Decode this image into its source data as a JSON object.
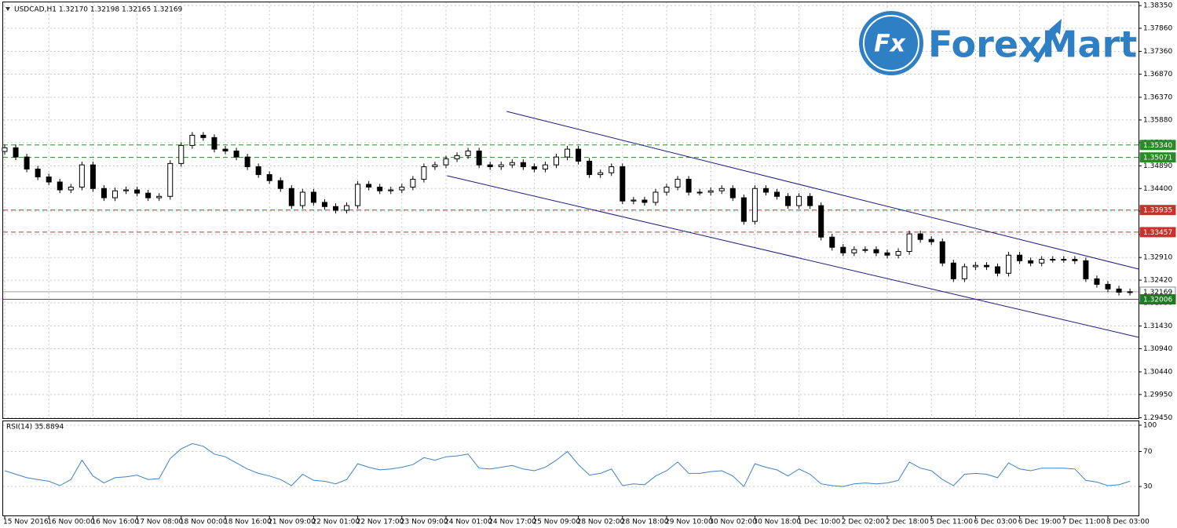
{
  "logo": {
    "icon": "Fx",
    "text": "ForexMart"
  },
  "chart_data": [
    {
      "type": "candlestick",
      "title": "USDCAD,H1  1.32170 1.32198 1.32165 1.32169",
      "categories": [
        "15 Nov 2016",
        null,
        null,
        null,
        "16 Nov 00:00",
        null,
        null,
        null,
        "16 Nov 16:00",
        null,
        null,
        null,
        "17 Nov 08:00",
        null,
        null,
        null,
        "18 Nov 00:00",
        null,
        null,
        null,
        "18 Nov 16:00",
        null,
        null,
        null,
        "21 Nov 09:00",
        null,
        null,
        null,
        "22 Nov 01:00",
        null,
        null,
        null,
        "22 Nov 17:00",
        null,
        null,
        null,
        "23 Nov 09:00",
        null,
        null,
        null,
        "24 Nov 01:00",
        null,
        null,
        null,
        "24 Nov 17:00",
        null,
        null,
        null,
        "25 Nov 09:00",
        null,
        null,
        null,
        "28 Nov 02:00",
        null,
        null,
        null,
        "28 Nov 18:00",
        null,
        null,
        null,
        "29 Nov 10:00",
        null,
        null,
        null,
        "30 Nov 02:00",
        null,
        null,
        null,
        "30 Nov 18:00",
        null,
        null,
        null,
        "1 Dec 10:00",
        null,
        null,
        null,
        "2 Dec 02:00",
        null,
        null,
        null,
        "2 Dec 18:00",
        null,
        null,
        null,
        "5 Dec 11:00",
        null,
        null,
        null,
        "6 Dec 03:00",
        null,
        null,
        null,
        "6 Dec 19:00",
        null,
        null,
        null,
        "7 Dec 11:00",
        null,
        null,
        null,
        "8 Dec 03:00",
        null,
        null
      ],
      "open": [
        1.352,
        1.3528,
        1.3508,
        1.3482,
        1.3465,
        1.3454,
        1.3437,
        1.3443,
        1.3491,
        1.344,
        1.342,
        1.3435,
        1.3437,
        1.343,
        1.342,
        1.3423,
        1.3494,
        1.3533,
        1.3555,
        1.355,
        1.3525,
        1.3521,
        1.3508,
        1.3487,
        1.347,
        1.3457,
        1.344,
        1.3403,
        1.3432,
        1.341,
        1.3401,
        1.3393,
        1.3403,
        1.3449,
        1.3443,
        1.3435,
        1.3437,
        1.3443,
        1.346,
        1.3487,
        1.3491,
        1.3504,
        1.3511,
        1.3521,
        1.3491,
        1.3487,
        1.3491,
        1.3496,
        1.3487,
        1.3482,
        1.3491,
        1.3508,
        1.3525,
        1.3499,
        1.347,
        1.3474,
        1.3487,
        1.3413,
        1.3415,
        1.341,
        1.3432,
        1.3443,
        1.346,
        1.3432,
        1.3432,
        1.3435,
        1.344,
        1.342,
        1.3369,
        1.344,
        1.3432,
        1.3423,
        1.3403,
        1.3423,
        1.3403,
        1.3335,
        1.3313,
        1.3301,
        1.3308,
        1.3308,
        1.3301,
        1.3296,
        1.3304,
        1.3342,
        1.333,
        1.3325,
        1.3279,
        1.3245,
        1.3271,
        1.3274,
        1.3271,
        1.3257,
        1.3296,
        1.3284,
        1.3279,
        1.3287,
        1.3287,
        1.3287,
        1.3284,
        1.3245,
        1.3233,
        1.3223,
        1.3216
      ],
      "high": [
        1.3535,
        1.3535,
        1.3515,
        1.3489,
        1.3472,
        1.3461,
        1.345,
        1.3498,
        1.3498,
        1.3447,
        1.3442,
        1.3444,
        1.3444,
        1.3437,
        1.343,
        1.3501,
        1.354,
        1.3562,
        1.3562,
        1.3557,
        1.3532,
        1.3528,
        1.3515,
        1.3494,
        1.3477,
        1.3464,
        1.3447,
        1.3439,
        1.3439,
        1.3417,
        1.3408,
        1.341,
        1.3456,
        1.3456,
        1.345,
        1.3444,
        1.345,
        1.3467,
        1.3494,
        1.3498,
        1.3511,
        1.3518,
        1.3528,
        1.3528,
        1.3498,
        1.3498,
        1.3503,
        1.3503,
        1.3494,
        1.3498,
        1.3515,
        1.3532,
        1.3532,
        1.3506,
        1.3481,
        1.3494,
        1.3494,
        1.3422,
        1.3422,
        1.3439,
        1.345,
        1.3467,
        1.3467,
        1.3439,
        1.3442,
        1.3447,
        1.3447,
        1.3427,
        1.3447,
        1.3447,
        1.3439,
        1.343,
        1.343,
        1.343,
        1.341,
        1.3342,
        1.332,
        1.3315,
        1.3315,
        1.3315,
        1.3308,
        1.3311,
        1.3349,
        1.3349,
        1.3337,
        1.3332,
        1.3286,
        1.3278,
        1.3281,
        1.3281,
        1.3278,
        1.3303,
        1.3303,
        1.3291,
        1.3294,
        1.3294,
        1.3294,
        1.3294,
        1.3291,
        1.3252,
        1.324,
        1.323,
        1.3224
      ],
      "low": [
        1.3513,
        1.3501,
        1.3475,
        1.3458,
        1.3447,
        1.343,
        1.343,
        1.3436,
        1.3433,
        1.3413,
        1.3413,
        1.3428,
        1.3423,
        1.3413,
        1.3413,
        1.3416,
        1.3487,
        1.3526,
        1.3543,
        1.3518,
        1.3514,
        1.3501,
        1.348,
        1.3463,
        1.345,
        1.3433,
        1.3396,
        1.3396,
        1.3403,
        1.3394,
        1.3386,
        1.3386,
        1.3396,
        1.3436,
        1.3428,
        1.3428,
        1.343,
        1.3436,
        1.3453,
        1.348,
        1.3484,
        1.3497,
        1.3504,
        1.3484,
        1.348,
        1.348,
        1.3484,
        1.348,
        1.3475,
        1.3475,
        1.3484,
        1.3501,
        1.3492,
        1.3463,
        1.3463,
        1.3467,
        1.3406,
        1.3406,
        1.3403,
        1.3403,
        1.3425,
        1.3436,
        1.3425,
        1.3425,
        1.3425,
        1.3428,
        1.3413,
        1.3362,
        1.3362,
        1.3425,
        1.3416,
        1.3396,
        1.3396,
        1.3396,
        1.3328,
        1.3306,
        1.3294,
        1.3294,
        1.3301,
        1.3294,
        1.3289,
        1.3289,
        1.3297,
        1.3323,
        1.3318,
        1.3272,
        1.3238,
        1.3238,
        1.3264,
        1.3264,
        1.325,
        1.325,
        1.3277,
        1.3272,
        1.3272,
        1.328,
        1.328,
        1.3277,
        1.3238,
        1.3226,
        1.3216,
        1.3209,
        1.3209
      ],
      "close": [
        1.3528,
        1.3508,
        1.3482,
        1.3465,
        1.3454,
        1.3437,
        1.3443,
        1.3491,
        1.344,
        1.342,
        1.3435,
        1.3437,
        1.343,
        1.342,
        1.3423,
        1.3494,
        1.3533,
        1.3555,
        1.355,
        1.3525,
        1.3521,
        1.3508,
        1.3487,
        1.347,
        1.3457,
        1.344,
        1.3403,
        1.3432,
        1.341,
        1.3401,
        1.3393,
        1.3403,
        1.3449,
        1.3443,
        1.3435,
        1.3437,
        1.3443,
        1.346,
        1.3487,
        1.3491,
        1.3504,
        1.3511,
        1.3521,
        1.3491,
        1.3487,
        1.3491,
        1.3496,
        1.3487,
        1.3482,
        1.3491,
        1.3508,
        1.3525,
        1.3499,
        1.347,
        1.3474,
        1.3487,
        1.3413,
        1.3415,
        1.341,
        1.3432,
        1.3443,
        1.346,
        1.3432,
        1.3432,
        1.3435,
        1.344,
        1.342,
        1.3369,
        1.344,
        1.3432,
        1.3423,
        1.3403,
        1.3423,
        1.3403,
        1.3335,
        1.3313,
        1.3301,
        1.3308,
        1.3308,
        1.3301,
        1.3296,
        1.3304,
        1.3342,
        1.333,
        1.3325,
        1.3279,
        1.3245,
        1.3271,
        1.3274,
        1.3271,
        1.3257,
        1.3296,
        1.3284,
        1.3279,
        1.3287,
        1.3287,
        1.3287,
        1.3284,
        1.3245,
        1.3233,
        1.3223,
        1.3216,
        1.3217
      ],
      "up_color": "#ffffff",
      "down_color": "#000000",
      "ylim": [
        1.2944,
        1.3842
      ],
      "yticks": [
        {
          "value": 1.3835,
          "label": "1.38350"
        },
        {
          "value": 1.3786,
          "label": "1.37860"
        },
        {
          "value": 1.3736,
          "label": "1.37360"
        },
        {
          "value": 1.3687,
          "label": "1.36870"
        },
        {
          "value": 1.3637,
          "label": "1.36370"
        },
        {
          "value": 1.3588,
          "label": "1.35880"
        },
        {
          "value": 1.3539,
          "label": "1.35390"
        },
        {
          "value": 1.3489,
          "label": "1.34890"
        },
        {
          "value": 1.344,
          "label": "1.34400"
        },
        {
          "value": 1.3391,
          "label": "1.33910"
        },
        {
          "value": 1.3341,
          "label": "1.33410"
        },
        {
          "value": 1.3291,
          "label": "1.32910"
        },
        {
          "value": 1.3242,
          "label": "1.32420"
        },
        {
          "value": 1.3193,
          "label": "1.31930"
        },
        {
          "value": 1.3143,
          "label": "1.31430"
        },
        {
          "value": 1.3094,
          "label": "1.30940"
        },
        {
          "value": 1.3044,
          "label": "1.30440"
        },
        {
          "value": 1.2995,
          "label": "1.29950"
        },
        {
          "value": 1.2945,
          "label": "1.29450"
        }
      ],
      "grid": true,
      "levels": [
        {
          "value": 1.3534,
          "label": "1.35340",
          "color": "#2a8a2a",
          "dashed": true
        },
        {
          "value": 1.35071,
          "color": "#2a8a2a",
          "dashed": true
        },
        {
          "value": 1.33935,
          "color": "#c8322b",
          "dashed": true
        },
        {
          "value": 1.33457,
          "color": "#c8322b",
          "dashed": true
        },
        {
          "value": 1.32169,
          "color": "#a0a0a0",
          "dashed": false
        },
        {
          "value": 1.32006,
          "color": "#1f7a1f",
          "dashed": false
        }
      ],
      "trendlines": [
        {
          "x": [
            45.5,
            102.8
          ],
          "y": [
            1.36065,
            1.32659
          ],
          "color": "#1a1a80"
        },
        {
          "x": [
            40.1,
            102.8
          ],
          "y": [
            1.34675,
            1.31185
          ],
          "color": "#1a1a80"
        }
      ]
    },
    {
      "type": "line",
      "title": "RSI(14) 35.8894",
      "values": [
        48,
        44,
        40,
        38,
        36,
        31,
        38,
        60,
        42,
        34,
        40,
        41,
        43,
        38,
        39,
        62,
        73,
        79,
        76,
        67,
        64,
        57,
        50,
        45,
        42,
        38,
        31,
        44,
        37,
        36,
        33,
        38,
        56,
        52,
        49,
        50,
        52,
        55,
        63,
        60,
        64,
        65,
        67,
        51,
        50,
        52,
        54,
        50,
        48,
        52,
        60,
        70,
        55,
        43,
        45,
        50,
        31,
        33,
        32,
        42,
        48,
        58,
        45,
        45,
        47,
        48,
        42,
        30,
        56,
        52,
        49,
        42,
        50,
        44,
        33,
        31,
        30,
        33,
        34,
        33,
        34,
        37,
        58,
        51,
        48,
        38,
        31,
        44,
        45,
        44,
        40,
        57,
        50,
        48,
        51,
        51,
        51,
        50,
        37,
        35,
        31,
        32,
        36
      ],
      "color": "#3c82c4",
      "ylim": [
        -3.1,
        104.5
      ],
      "yticks": [
        30,
        70,
        100
      ],
      "grid": true
    }
  ]
}
